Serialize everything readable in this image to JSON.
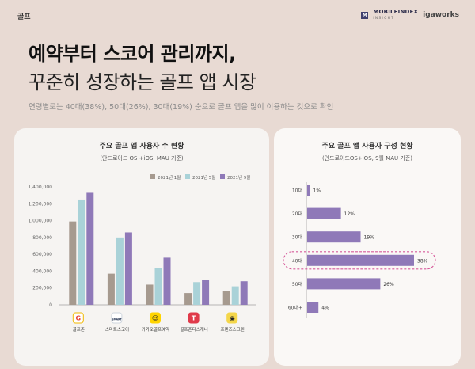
{
  "header": {
    "tag": "골프",
    "brand_badge": "M",
    "brand_name": "MOBILEINDEX",
    "brand_sub": "INSIGHT",
    "brand_partner": "igaworks"
  },
  "headline": {
    "line1": "예약부터 스코어 관리까지,",
    "line2": "꾸준히 성장하는 골프 앱 시장",
    "subtitle": "연령별로는 40대(38%), 50대(26%), 30대(19%) 순으로 골프 앱을 많이 이용하는 것으로 확인"
  },
  "chart_data": [
    {
      "type": "bar",
      "title": "주요 골프 앱 사용자 수 현황",
      "subtitle": "(안드로이드 OS +iOS,  MAU 기준)",
      "categories": [
        "골프존",
        "스마트스코어",
        "카카오골프예약",
        "골프존티스캐너",
        "프렌즈스크린"
      ],
      "series": [
        {
          "name": "2021년 1월",
          "color": "#a69a8f",
          "values": [
            990000,
            370000,
            240000,
            140000,
            160000
          ]
        },
        {
          "name": "2021년 5월",
          "color": "#a9d2d8",
          "values": [
            1250000,
            800000,
            440000,
            270000,
            220000
          ]
        },
        {
          "name": "2021년 9월",
          "color": "#8f79b8",
          "values": [
            1330000,
            860000,
            560000,
            300000,
            280000
          ]
        }
      ],
      "yticks": [
        "0",
        "200,000",
        "400,000",
        "600,000",
        "800,000",
        "1,000,000",
        "1,200,000",
        "1,400,000"
      ],
      "ylim": [
        0,
        1400000
      ],
      "grid": false,
      "legend": "top-right"
    },
    {
      "type": "bar",
      "orientation": "horizontal",
      "title": "주요 골프 앱 사용자 구성 현황",
      "subtitle": "(안드로이드OS+iOS, 9월 MAU 기준)",
      "categories": [
        "10대",
        "20대",
        "30대",
        "40대",
        "50대",
        "60대+"
      ],
      "values": [
        1,
        12,
        19,
        38,
        26,
        4
      ],
      "value_labels": [
        "1%",
        "12%",
        "19%",
        "38%",
        "26%",
        "4%"
      ],
      "color": "#8f79b8",
      "highlight": "40대",
      "highlight_color": "#d65a9a",
      "xlim": [
        0,
        38
      ]
    }
  ],
  "app_icons": [
    {
      "name": "golfzon",
      "glyph": "G",
      "bg": "#ffffff",
      "fg": "#e8443a",
      "ring": "#f2b800"
    },
    {
      "name": "smartscore",
      "glyph": "SMART",
      "bg": "#ffffff",
      "fg": "#1b2b4a",
      "ring": "#cfd6de"
    },
    {
      "name": "kakaogolf",
      "glyph": "☺",
      "bg": "#ffd400",
      "fg": "#2b2b2b",
      "ring": "#ffd400"
    },
    {
      "name": "golfzon-t",
      "glyph": "T",
      "bg": "#e03a4a",
      "fg": "#ffffff",
      "ring": "#e03a4a"
    },
    {
      "name": "friends",
      "glyph": "◉",
      "bg": "#f4d64a",
      "fg": "#222222",
      "ring": "#f4d64a"
    }
  ]
}
